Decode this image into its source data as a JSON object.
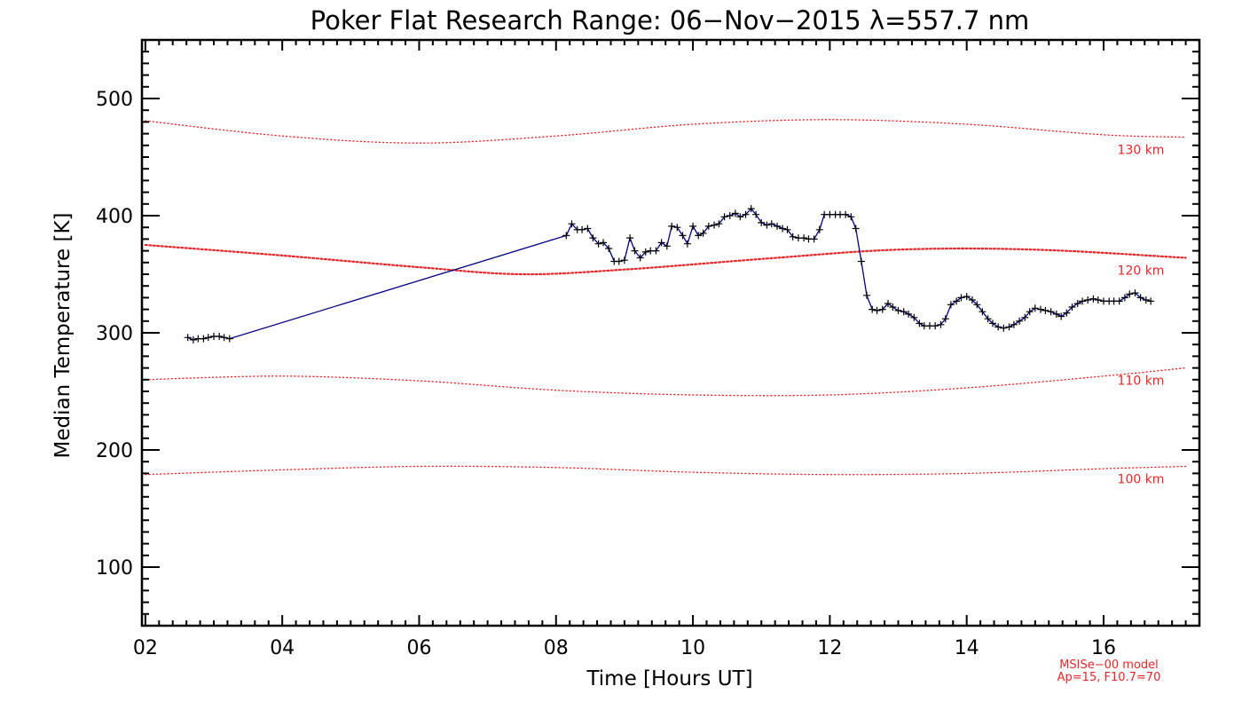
{
  "chart_data": {
    "type": "line",
    "title": "Poker Flat Research Range: 06−Nov−2015 λ=557.7 nm",
    "xlabel": "Time [Hours UT]",
    "ylabel": "Median Temperature [K]",
    "xlim": [
      1.95,
      17.4
    ],
    "ylim": [
      50,
      550
    ],
    "x_ticks": [
      2,
      4,
      6,
      8,
      10,
      12,
      14,
      16
    ],
    "x_tick_labels": [
      "02",
      "04",
      "06",
      "08",
      "10",
      "12",
      "14",
      "16"
    ],
    "y_ticks": [
      100,
      200,
      300,
      400,
      500
    ],
    "y_tick_labels": [
      "100",
      "200",
      "300",
      "400",
      "500"
    ],
    "series": [
      {
        "color": "#000080",
        "marker": "+",
        "points": [
          [
            2.62,
            296
          ],
          [
            2.7,
            294
          ],
          [
            2.77,
            295
          ],
          [
            2.85,
            295
          ],
          [
            2.92,
            296
          ],
          [
            3.0,
            297
          ],
          [
            3.08,
            297
          ],
          [
            3.15,
            296
          ],
          [
            3.23,
            295
          ],
          [
            8.15,
            383
          ],
          [
            8.23,
            393
          ],
          [
            8.31,
            388
          ],
          [
            8.38,
            388
          ],
          [
            8.46,
            389
          ],
          [
            8.54,
            381
          ],
          [
            8.62,
            376
          ],
          [
            8.69,
            377
          ],
          [
            8.77,
            372
          ],
          [
            8.85,
            361
          ],
          [
            8.92,
            361
          ],
          [
            9.0,
            362
          ],
          [
            9.08,
            381
          ],
          [
            9.15,
            370
          ],
          [
            9.23,
            364
          ],
          [
            9.31,
            369
          ],
          [
            9.38,
            370
          ],
          [
            9.46,
            370
          ],
          [
            9.54,
            377
          ],
          [
            9.62,
            374
          ],
          [
            9.69,
            391
          ],
          [
            9.77,
            390
          ],
          [
            9.85,
            383
          ],
          [
            9.92,
            376
          ],
          [
            10.0,
            391
          ],
          [
            10.08,
            383
          ],
          [
            10.15,
            385
          ],
          [
            10.23,
            391
          ],
          [
            10.31,
            392
          ],
          [
            10.38,
            393
          ],
          [
            10.46,
            399
          ],
          [
            10.54,
            400
          ],
          [
            10.62,
            402
          ],
          [
            10.69,
            399
          ],
          [
            10.77,
            401
          ],
          [
            10.85,
            406
          ],
          [
            10.92,
            401
          ],
          [
            11.0,
            394
          ],
          [
            11.08,
            392
          ],
          [
            11.15,
            393
          ],
          [
            11.23,
            391
          ],
          [
            11.31,
            389
          ],
          [
            11.38,
            388
          ],
          [
            11.46,
            382
          ],
          [
            11.54,
            381
          ],
          [
            11.62,
            381
          ],
          [
            11.69,
            380
          ],
          [
            11.77,
            380
          ],
          [
            11.85,
            388
          ],
          [
            11.92,
            401
          ],
          [
            12.0,
            401
          ],
          [
            12.08,
            401
          ],
          [
            12.15,
            401
          ],
          [
            12.23,
            401
          ],
          [
            12.31,
            399
          ],
          [
            12.38,
            389
          ],
          [
            12.46,
            361
          ],
          [
            12.54,
            332
          ],
          [
            12.62,
            320
          ],
          [
            12.69,
            319
          ],
          [
            12.77,
            320
          ],
          [
            12.85,
            325
          ],
          [
            12.92,
            322
          ],
          [
            13.0,
            319
          ],
          [
            13.08,
            318
          ],
          [
            13.15,
            316
          ],
          [
            13.23,
            313
          ],
          [
            13.31,
            308
          ],
          [
            13.38,
            306
          ],
          [
            13.46,
            306
          ],
          [
            13.54,
            306
          ],
          [
            13.62,
            307
          ],
          [
            13.69,
            312
          ],
          [
            13.77,
            324
          ],
          [
            13.85,
            327
          ],
          [
            13.92,
            330
          ],
          [
            14.0,
            331
          ],
          [
            14.08,
            328
          ],
          [
            14.15,
            324
          ],
          [
            14.23,
            318
          ],
          [
            14.31,
            312
          ],
          [
            14.38,
            308
          ],
          [
            14.46,
            305
          ],
          [
            14.54,
            304
          ],
          [
            14.62,
            305
          ],
          [
            14.69,
            307
          ],
          [
            14.77,
            310
          ],
          [
            14.85,
            313
          ],
          [
            14.92,
            318
          ],
          [
            15.0,
            321
          ],
          [
            15.08,
            320
          ],
          [
            15.15,
            319
          ],
          [
            15.23,
            318
          ],
          [
            15.31,
            316
          ],
          [
            15.38,
            314
          ],
          [
            15.46,
            317
          ],
          [
            15.54,
            322
          ],
          [
            15.62,
            325
          ],
          [
            15.69,
            327
          ],
          [
            15.77,
            328
          ],
          [
            15.85,
            329
          ],
          [
            15.92,
            328
          ],
          [
            16.0,
            327
          ],
          [
            16.08,
            327
          ],
          [
            16.15,
            327
          ],
          [
            16.23,
            327
          ],
          [
            16.31,
            330
          ],
          [
            16.38,
            333
          ],
          [
            16.46,
            334
          ],
          [
            16.54,
            330
          ],
          [
            16.62,
            328
          ],
          [
            16.69,
            327
          ]
        ]
      }
    ],
    "msis_bands": [
      {
        "label": "130 km",
        "points": [
          [
            2.0,
            481
          ],
          [
            4.0,
            468
          ],
          [
            6.0,
            462
          ],
          [
            8.0,
            468
          ],
          [
            10.0,
            478
          ],
          [
            12.0,
            482
          ],
          [
            14.0,
            478
          ],
          [
            16.0,
            469
          ],
          [
            17.2,
            467
          ]
        ]
      },
      {
        "label": "120 km",
        "points": [
          [
            2.0,
            375
          ],
          [
            4.0,
            366
          ],
          [
            6.0,
            356
          ],
          [
            7.5,
            350
          ],
          [
            9.0,
            354
          ],
          [
            11.0,
            363
          ],
          [
            13.0,
            371
          ],
          [
            15.0,
            371
          ],
          [
            17.2,
            364
          ]
        ]
      },
      {
        "label": "110 km",
        "points": [
          [
            2.0,
            260
          ],
          [
            4.0,
            263
          ],
          [
            6.0,
            259
          ],
          [
            8.0,
            251
          ],
          [
            10.0,
            247
          ],
          [
            12.0,
            247
          ],
          [
            14.0,
            253
          ],
          [
            16.0,
            263
          ],
          [
            17.2,
            270
          ]
        ]
      },
      {
        "label": "100 km",
        "points": [
          [
            2.0,
            179
          ],
          [
            4.0,
            183
          ],
          [
            6.0,
            186
          ],
          [
            8.0,
            185
          ],
          [
            10.0,
            181
          ],
          [
            12.0,
            179
          ],
          [
            14.0,
            180
          ],
          [
            16.0,
            184
          ],
          [
            17.2,
            186
          ]
        ]
      }
    ],
    "model_note_line1": "MSISe−00 model",
    "model_note_line2": "Ap=15, F10.7=70",
    "colors": {
      "data": "#000080",
      "data_marker": "#000000",
      "model": "#e8262a",
      "axis": "#000000"
    }
  }
}
